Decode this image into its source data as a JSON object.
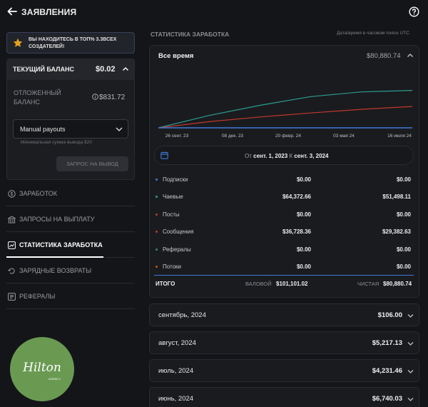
{
  "header": {
    "title": "ЗАЯВЛЕНИЯ"
  },
  "promo": {
    "text": "ВЫ НАХОДИТЕСЬ В ТОП% 3.3ВСЕХ СОЗДАТЕЛЕЙ!"
  },
  "balance": {
    "current_label": "ТЕКУЩИЙ БАЛАНС",
    "current_value": "$0.02",
    "pending_label": "ОТЛОЖЕННЫЙ БАЛАНС",
    "pending_value": "$831.72",
    "payout_select": "Manual payouts",
    "min_note": "Минимальная сумма вывода $20",
    "withdraw_button": "ЗАПРОС НА ВЫВОД"
  },
  "nav": {
    "items": [
      {
        "label": "ЗАРАБОТОК",
        "icon": "dollar-circle-icon"
      },
      {
        "label": "ЗАПРОСЫ НА ВЫПЛАТУ",
        "icon": "bank-icon"
      },
      {
        "label": "СТАТИСТИКА ЗАРАБОТКА",
        "icon": "chart-icon",
        "active": true
      },
      {
        "label": "ЗАРЯДНЫЕ ВОЗВРАТЫ",
        "icon": "refund-icon"
      },
      {
        "label": "РЕФЕРАЛЫ",
        "icon": "referral-icon"
      }
    ]
  },
  "logo": {
    "text": "Hilton",
    "subtext": "AGENCY"
  },
  "stats": {
    "section_title": "СТАТИСТИКА ЗАРАБОТКА",
    "timezone_note": "Дата/время в часовом поясе UTC",
    "period_label": "Все время",
    "period_total": "$80,880.74",
    "date_from_label": "От",
    "date_from": "сент. 1, 2023",
    "date_to_label": "К",
    "date_to": "сент. 3, 2024",
    "rows": [
      {
        "name": "Подписки",
        "gross": "$0.00",
        "net": "$0.00",
        "color": "#3d7bd5"
      },
      {
        "name": "Чаевые",
        "gross": "$64,372.66",
        "net": "$51,498.11",
        "color": "#2a9d8f"
      },
      {
        "name": "Посты",
        "gross": "$0.00",
        "net": "$0.00",
        "color": "#c0392b"
      },
      {
        "name": "Сообщения",
        "gross": "$36,728.36",
        "net": "$29,382.63",
        "color": "#c0392b"
      },
      {
        "name": "Рефералы",
        "gross": "$0.00",
        "net": "$0.00",
        "color": "#2e8b57"
      },
      {
        "name": "Потоки",
        "gross": "$0.00",
        "net": "$0.00",
        "color": "#d35400"
      }
    ],
    "total_label": "ИТОГО",
    "gross_label": "ВАЛОВОЙ",
    "gross_total": "$101,101.02",
    "net_label": "ЧИСТАЯ",
    "net_total": "$80,880.74"
  },
  "months": [
    {
      "label": "сентябрь, 2024",
      "value": "$106.00"
    },
    {
      "label": "август, 2024",
      "value": "$5,217.13"
    },
    {
      "label": "июль, 2024",
      "value": "$4,231.46"
    },
    {
      "label": "июнь, 2024",
      "value": "$6,740.03"
    }
  ],
  "chart_data": {
    "type": "line",
    "x_ticks": [
      "26 сент. 23",
      "08 дек. 23",
      "20 февр. 24",
      "03 мая 24",
      "16 июля 24"
    ],
    "x": [
      "26 сент. 23",
      "08 дек. 23",
      "20 февр. 24",
      "03 мая 24",
      "16 июля 24",
      "03 сент. 24"
    ],
    "series": [
      {
        "color": "#2a9d8f",
        "values": [
          0,
          17000,
          31000,
          43000,
          49500,
          51498.11
        ]
      },
      {
        "color": "#c0392b",
        "values": [
          0,
          8500,
          15000,
          20500,
          25500,
          29382.63
        ]
      },
      {
        "color": "#3d7bd5",
        "values": [
          0,
          0,
          0,
          0,
          0,
          0
        ]
      }
    ],
    "ylim": [
      0,
      60000
    ]
  }
}
